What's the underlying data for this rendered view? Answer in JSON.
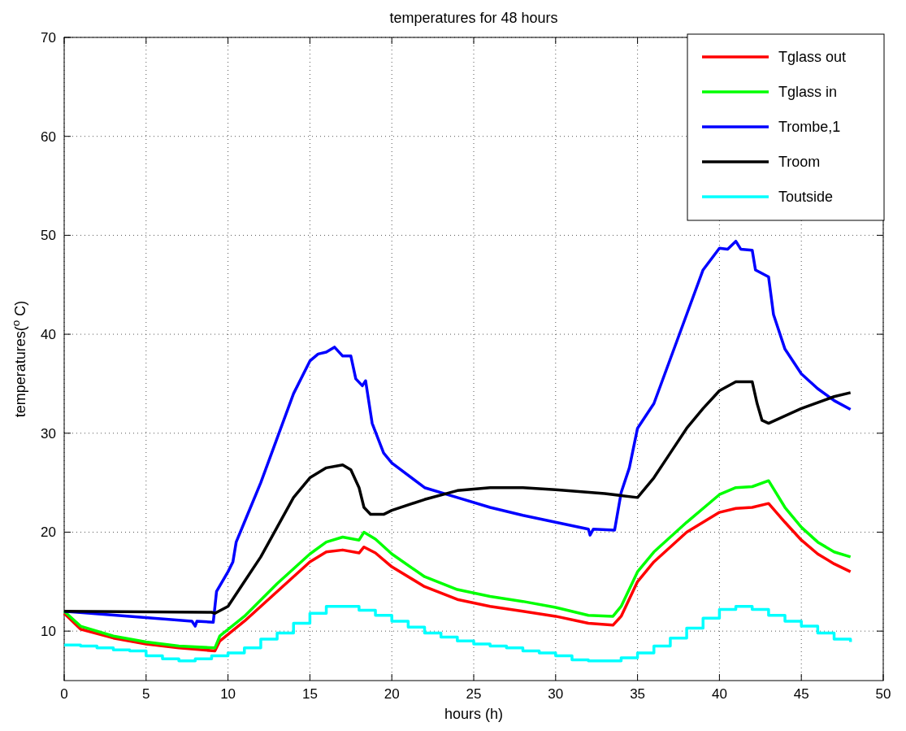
{
  "chart_data": {
    "type": "line",
    "title": "temperatures for 48 hours",
    "xlabel": "hours (h)",
    "ylabel": "temperatures($^{o}$ C)",
    "xlim": [
      0,
      50
    ],
    "xticks": [
      0,
      5,
      10,
      15,
      20,
      25,
      30,
      35,
      40,
      45,
      50
    ],
    "ylim": [
      5,
      70
    ],
    "yticks": [
      10,
      20,
      30,
      40,
      50,
      60,
      70
    ],
    "grid": true,
    "legend": "top right",
    "series": [
      {
        "name": "Tglass out",
        "color": "#ff0000",
        "x": [
          0,
          1,
          3,
          5,
          7,
          9.2,
          9.5,
          11,
          13,
          15,
          16,
          17,
          18,
          18.3,
          19,
          20,
          22,
          24,
          26,
          28,
          30,
          32,
          33.5,
          34,
          35,
          36,
          38,
          40,
          41,
          42,
          43,
          44,
          45,
          46,
          47,
          48
        ],
        "values": [
          11.8,
          10.2,
          9.3,
          8.7,
          8.3,
          8.0,
          9,
          11,
          14,
          17,
          18,
          18.2,
          17.9,
          18.5,
          17.9,
          16.5,
          14.5,
          13.2,
          12.5,
          12,
          11.5,
          10.8,
          10.6,
          11.5,
          15,
          17,
          20,
          22,
          22.4,
          22.5,
          22.9,
          21,
          19.2,
          17.8,
          16.8,
          16
        ]
      },
      {
        "name": "Tglass in",
        "color": "#00ff00",
        "x": [
          0,
          1,
          3,
          5,
          7,
          9.2,
          9.5,
          11,
          13,
          15,
          16,
          17,
          18,
          18.3,
          19,
          20,
          22,
          24,
          26,
          28,
          30,
          32,
          33.5,
          34,
          35,
          36,
          38,
          40,
          41,
          42,
          43,
          44,
          45,
          46,
          47,
          48
        ],
        "values": [
          12,
          10.5,
          9.5,
          8.9,
          8.5,
          8.3,
          9.5,
          11.5,
          14.8,
          17.8,
          19,
          19.5,
          19.2,
          20,
          19.3,
          17.8,
          15.5,
          14.2,
          13.5,
          13,
          12.4,
          11.6,
          11.5,
          12.5,
          16,
          18,
          21,
          23.8,
          24.5,
          24.6,
          25.2,
          22.5,
          20.5,
          19,
          18,
          17.5
        ]
      },
      {
        "name": "Trombe,1",
        "color": "#0000ff",
        "x": [
          0,
          4,
          7.8,
          8,
          8.1,
          9.1,
          9.3,
          10,
          10.3,
          10.5,
          11,
          12,
          13,
          14,
          15,
          15.5,
          16,
          16.5,
          17,
          17.5,
          17.8,
          18.2,
          18.4,
          18.8,
          19.5,
          20,
          22,
          24,
          26,
          28,
          30,
          32,
          32.1,
          32.3,
          33.6,
          34,
          34.5,
          35,
          36,
          37,
          38,
          39,
          40,
          40.5,
          41,
          41.3,
          42,
          42.2,
          43,
          43.3,
          44,
          45,
          46,
          47,
          48
        ],
        "values": [
          12,
          11.5,
          11,
          10.5,
          11,
          10.9,
          14,
          16,
          17,
          19,
          21,
          25,
          29.5,
          34,
          37.3,
          38,
          38.2,
          38.7,
          37.8,
          37.8,
          35.5,
          34.8,
          35.3,
          31,
          28,
          27,
          24.5,
          23.5,
          22.5,
          21.7,
          21,
          20.3,
          19.7,
          20.3,
          20.2,
          24,
          26.5,
          30.5,
          33,
          37.5,
          42,
          46.5,
          48.7,
          48.6,
          49.4,
          48.6,
          48.5,
          46.5,
          45.8,
          42,
          38.5,
          36,
          34.5,
          33.3,
          32.4
        ]
      },
      {
        "name": "Troom",
        "color": "#000000",
        "x": [
          0,
          9,
          9.2,
          10,
          11,
          12,
          13,
          14,
          15,
          16,
          17,
          17.5,
          18,
          18.3,
          18.7,
          19.5,
          20,
          22,
          24,
          26,
          28,
          30,
          33,
          35,
          36,
          37,
          38,
          39,
          40,
          41,
          42,
          42.3,
          42.6,
          43,
          45,
          47,
          48
        ],
        "values": [
          12,
          11.9,
          11.8,
          12.5,
          15,
          17.5,
          20.5,
          23.5,
          25.5,
          26.5,
          26.8,
          26.3,
          24.5,
          22.5,
          21.8,
          21.8,
          22.2,
          23.3,
          24.2,
          24.5,
          24.5,
          24.3,
          23.9,
          23.5,
          25.5,
          28,
          30.5,
          32.5,
          34.3,
          35.2,
          35.2,
          33,
          31.3,
          31,
          32.5,
          33.7,
          34.1
        ]
      },
      {
        "name": "Toutside",
        "color": "#00ffff",
        "type": "step",
        "x": [
          0,
          1,
          2,
          3,
          4,
          5,
          6,
          7,
          8,
          9,
          10,
          11,
          12,
          13,
          14,
          15,
          16,
          17,
          18,
          19,
          20,
          21,
          22,
          23,
          24,
          25,
          26,
          27,
          28,
          29,
          30,
          31,
          32,
          33,
          34,
          35,
          36,
          37,
          38,
          39,
          40,
          41,
          42,
          43,
          44,
          45,
          46,
          47,
          48
        ],
        "values": [
          8.6,
          8.5,
          8.3,
          8.1,
          8.0,
          7.5,
          7.2,
          7.0,
          7.2,
          7.5,
          7.8,
          8.3,
          9.2,
          9.8,
          10.8,
          11.8,
          12.5,
          12.5,
          12.1,
          11.6,
          11.0,
          10.4,
          9.8,
          9.4,
          9.0,
          8.7,
          8.5,
          8.3,
          8.0,
          7.8,
          7.5,
          7.1,
          7.0,
          7.0,
          7.3,
          7.8,
          8.5,
          9.3,
          10.3,
          11.3,
          12.2,
          12.5,
          12.2,
          11.6,
          11.0,
          10.5,
          9.8,
          9.2,
          8.9
        ]
      }
    ]
  }
}
